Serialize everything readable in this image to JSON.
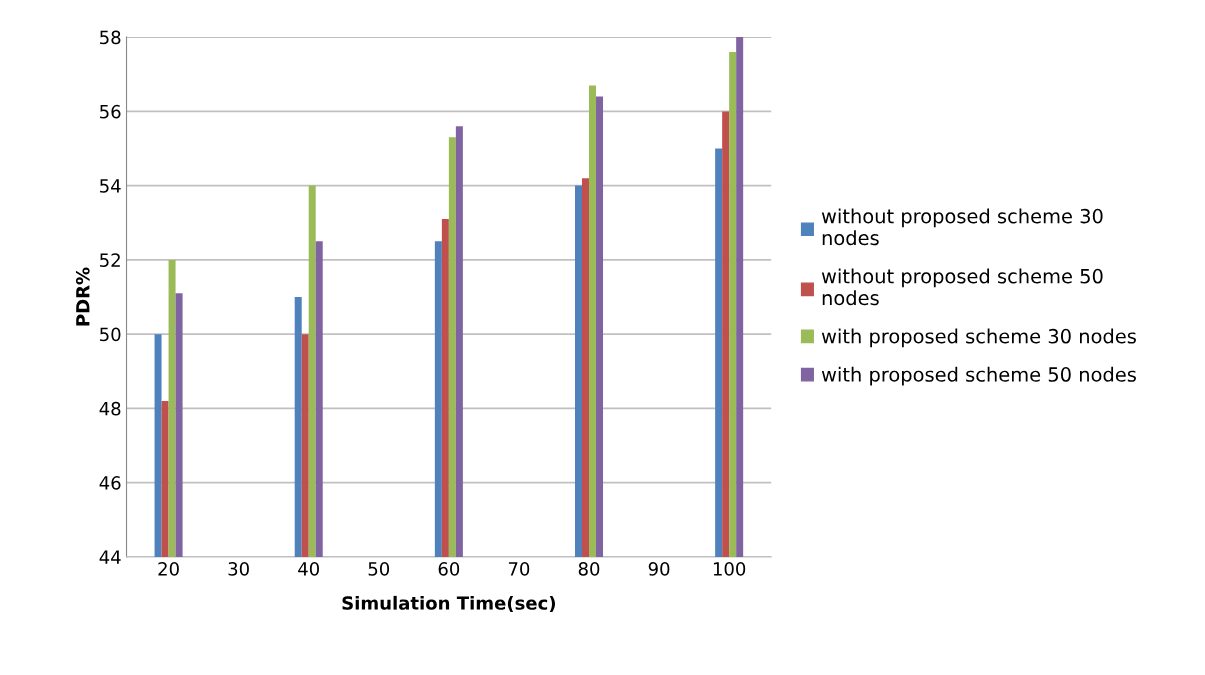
{
  "chart_data": {
    "type": "bar",
    "xlabel": "Simulation Time(sec)",
    "ylabel": "PDR%",
    "categories": [
      "20",
      "30",
      "40",
      "50",
      "60",
      "70",
      "80",
      "90",
      "100"
    ],
    "series": [
      {
        "name": "without proposed scheme 30 nodes",
        "color": "#4f81bd",
        "values": [
          50,
          null,
          51,
          null,
          52.5,
          null,
          54,
          null,
          55
        ]
      },
      {
        "name": "without proposed scheme 50 nodes",
        "color": "#c0504d",
        "values": [
          48.2,
          null,
          50,
          null,
          53.1,
          null,
          54.2,
          null,
          56
        ]
      },
      {
        "name": "with proposed scheme 30 nodes",
        "color": "#9bbb59",
        "values": [
          52,
          null,
          54,
          null,
          55.3,
          null,
          56.7,
          null,
          57.6
        ]
      },
      {
        "name": "with proposed scheme 50 nodes",
        "color": "#8064a2",
        "values": [
          51.1,
          null,
          52.5,
          null,
          55.6,
          null,
          56.4,
          null,
          58
        ]
      }
    ],
    "ylim": [
      44,
      58
    ],
    "yticks": [
      44,
      46,
      48,
      50,
      52,
      54,
      56,
      58
    ],
    "grid": "y",
    "legend": "right"
  }
}
